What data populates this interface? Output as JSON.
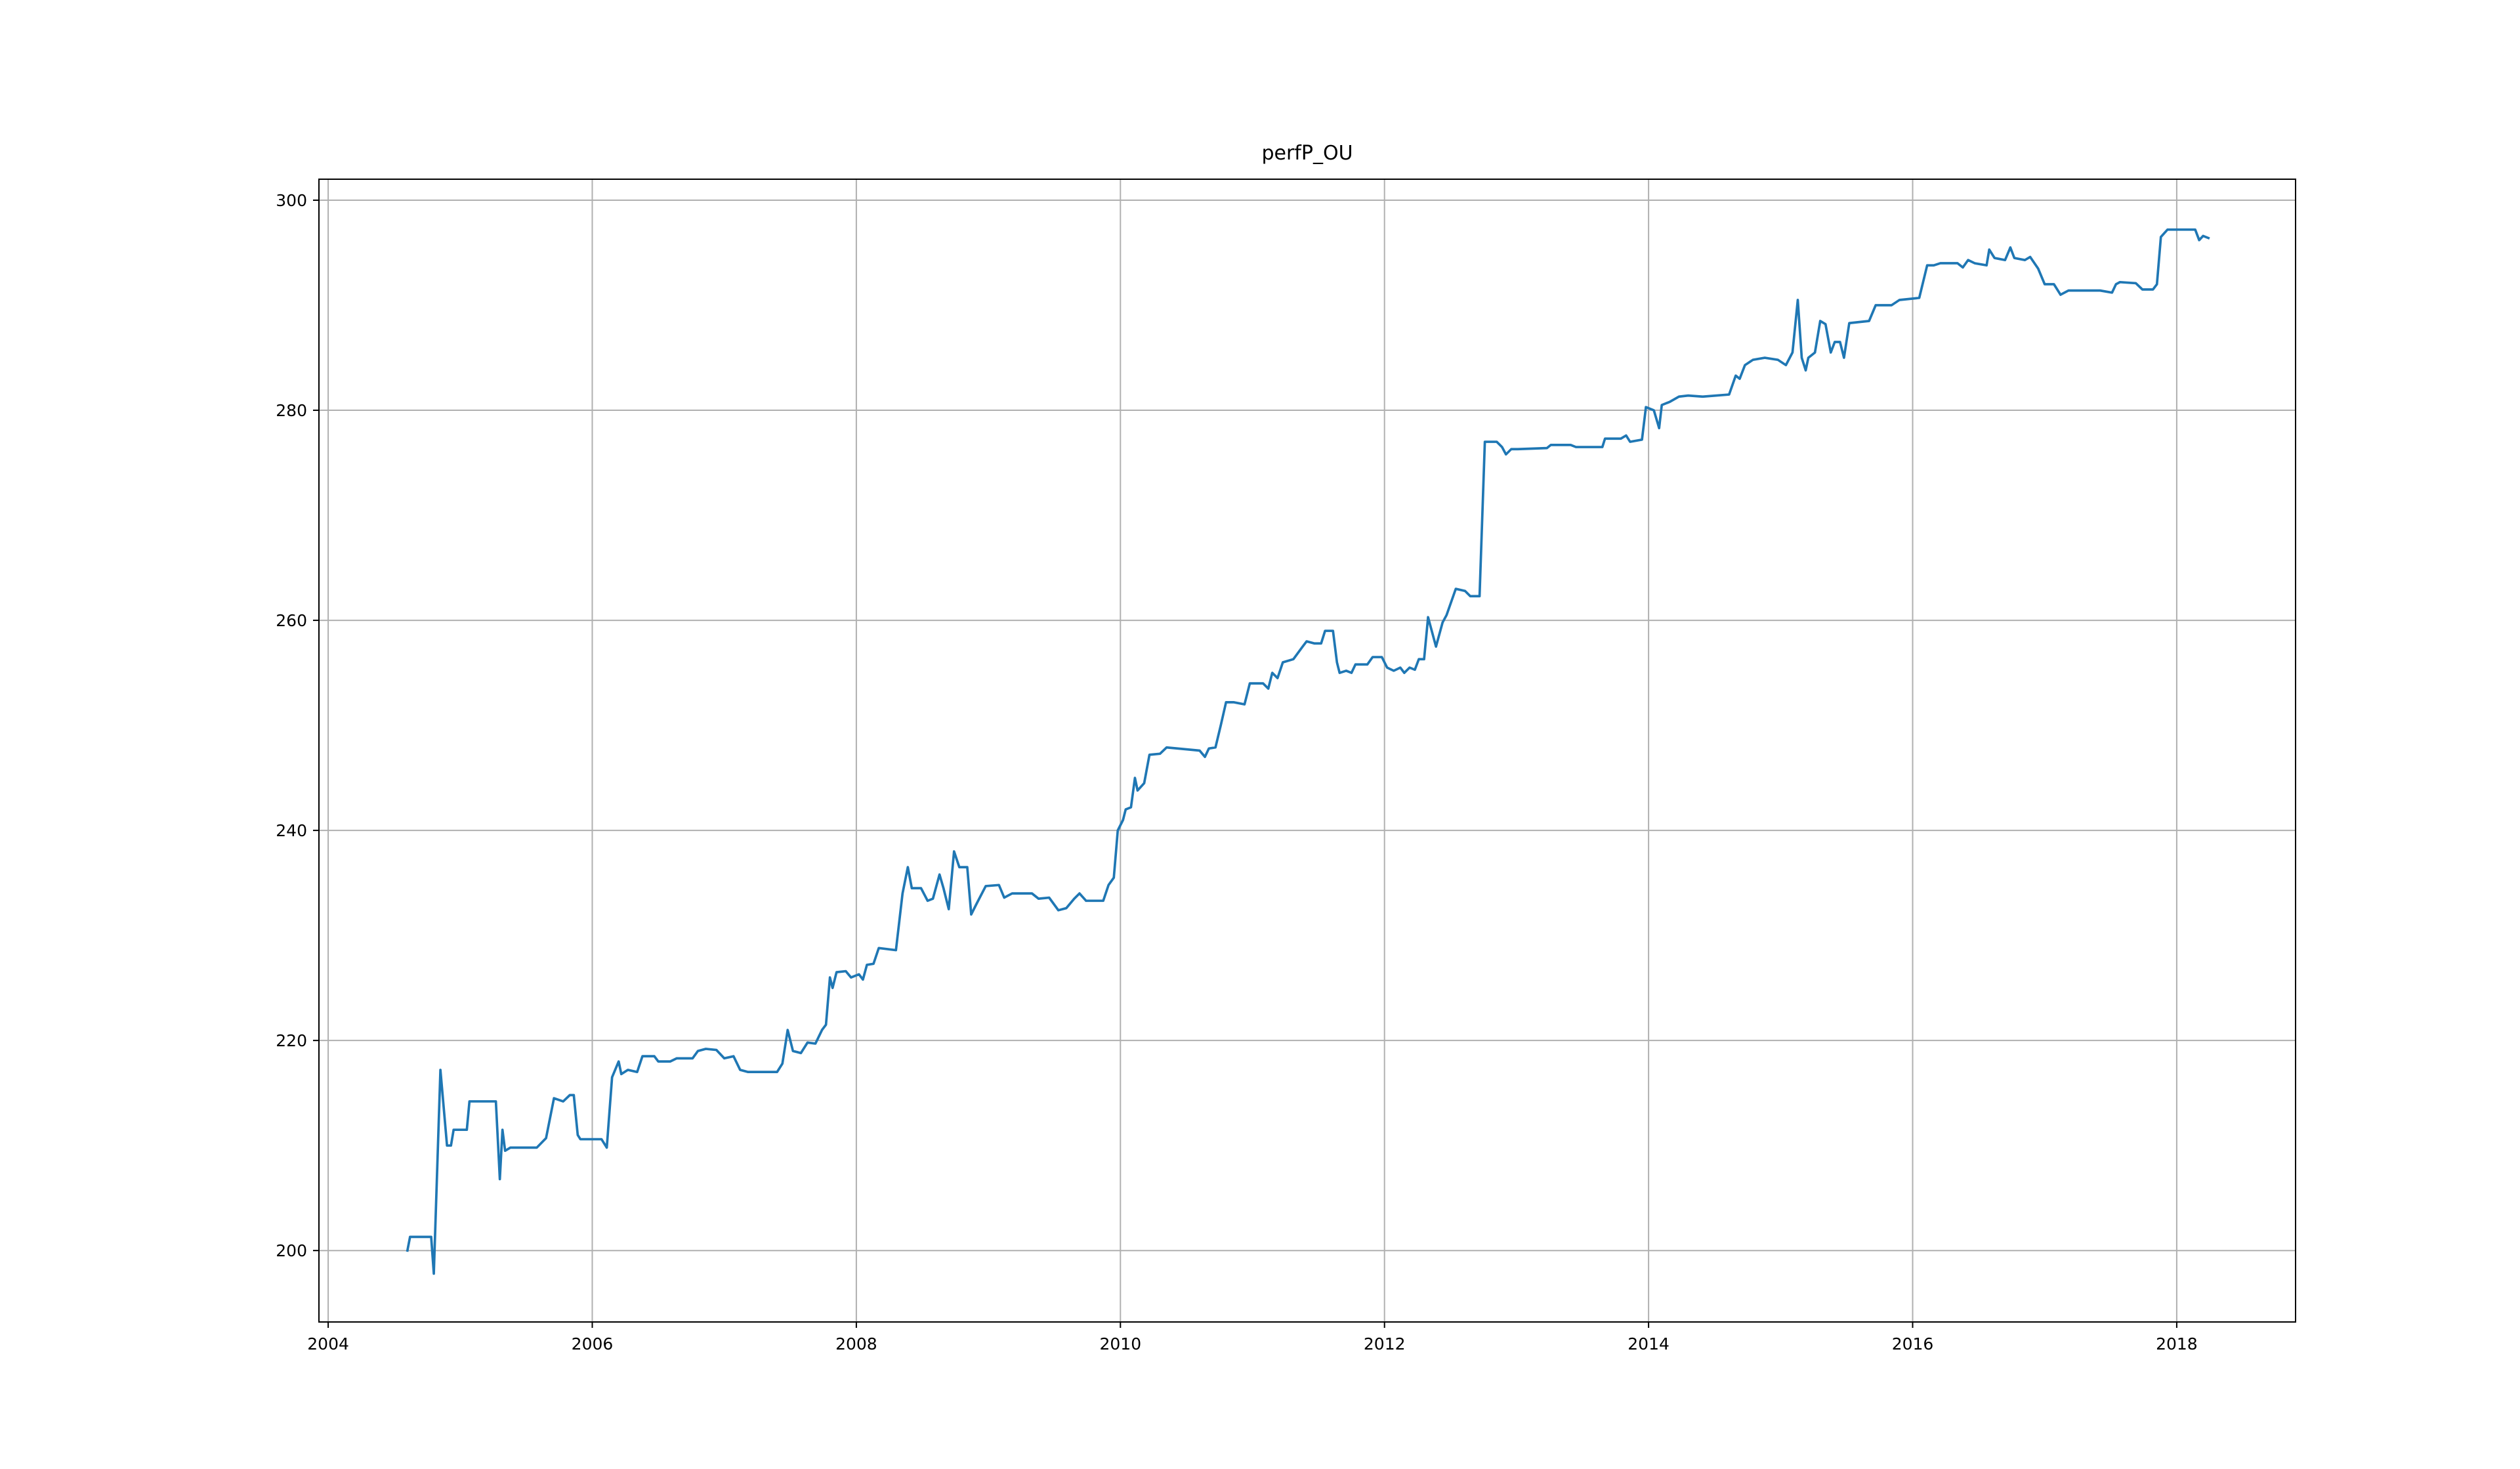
{
  "chart_data": {
    "type": "line",
    "title": "perfP_OU",
    "color": "#1f77b4",
    "grid": true,
    "xlim": [
      2003.93,
      2018.9
    ],
    "ylim": [
      193.2,
      302
    ],
    "xticks": [
      2004,
      2006,
      2008,
      2010,
      2012,
      2014,
      2016,
      2018
    ],
    "yticks": [
      200,
      220,
      240,
      260,
      280,
      300
    ],
    "x": [
      2004.6,
      2004.62,
      2004.78,
      2004.8,
      2004.85,
      2004.9,
      2004.93,
      2004.95,
      2005.05,
      2005.07,
      2005.27,
      2005.3,
      2005.32,
      2005.34,
      2005.38,
      2005.58,
      2005.65,
      2005.71,
      2005.78,
      2005.83,
      2005.86,
      2005.89,
      2005.91,
      2006.07,
      2006.11,
      2006.15,
      2006.2,
      2006.22,
      2006.27,
      2006.34,
      2006.38,
      2006.47,
      2006.5,
      2006.59,
      2006.64,
      2006.76,
      2006.8,
      2006.86,
      2006.94,
      2007.0,
      2007.07,
      2007.12,
      2007.18,
      2007.4,
      2007.44,
      2007.48,
      2007.52,
      2007.58,
      2007.63,
      2007.69,
      2007.74,
      2007.77,
      2007.8,
      2007.82,
      2007.85,
      2007.92,
      2007.96,
      2008.02,
      2008.05,
      2008.08,
      2008.13,
      2008.17,
      2008.3,
      2008.35,
      2008.39,
      2008.42,
      2008.49,
      2008.54,
      2008.58,
      2008.63,
      2008.66,
      2008.7,
      2008.74,
      2008.78,
      2008.84,
      2008.87,
      2008.91,
      2008.98,
      2009.08,
      2009.12,
      2009.18,
      2009.33,
      2009.38,
      2009.46,
      2009.53,
      2009.59,
      2009.65,
      2009.69,
      2009.74,
      2009.87,
      2009.91,
      2009.95,
      2009.98,
      2010.02,
      2010.04,
      2010.08,
      2010.11,
      2010.13,
      2010.18,
      2010.22,
      2010.3,
      2010.35,
      2010.6,
      2010.64,
      2010.67,
      2010.72,
      2010.76,
      2010.8,
      2010.86,
      2010.94,
      2010.98,
      2011.08,
      2011.12,
      2011.15,
      2011.19,
      2011.23,
      2011.31,
      2011.38,
      2011.41,
      2011.47,
      2011.52,
      2011.55,
      2011.61,
      2011.64,
      2011.66,
      2011.71,
      2011.75,
      2011.78,
      2011.87,
      2011.91,
      2011.98,
      2012.02,
      2012.07,
      2012.12,
      2012.15,
      2012.19,
      2012.23,
      2012.26,
      2012.3,
      2012.33,
      2012.39,
      2012.44,
      2012.47,
      2012.54,
      2012.61,
      2012.65,
      2012.72,
      2012.76,
      2012.85,
      2012.89,
      2012.92,
      2012.96,
      2013.01,
      2013.23,
      2013.26,
      2013.41,
      2013.45,
      2013.65,
      2013.67,
      2013.79,
      2013.83,
      2013.86,
      2013.95,
      2013.98,
      2014.04,
      2014.08,
      2014.1,
      2014.16,
      2014.23,
      2014.3,
      2014.41,
      2014.61,
      2014.66,
      2014.69,
      2014.73,
      2014.79,
      2014.88,
      2014.98,
      2015.04,
      2015.09,
      2015.13,
      2015.16,
      2015.19,
      2015.21,
      2015.26,
      2015.3,
      2015.34,
      2015.38,
      2015.41,
      2015.45,
      2015.48,
      2015.52,
      2015.67,
      2015.72,
      2015.84,
      2015.9,
      2016.05,
      2016.11,
      2016.16,
      2016.21,
      2016.34,
      2016.38,
      2016.42,
      2016.47,
      2016.56,
      2016.58,
      2016.62,
      2016.7,
      2016.74,
      2016.77,
      2016.85,
      2016.89,
      2016.95,
      2017.0,
      2017.07,
      2017.12,
      2017.18,
      2017.42,
      2017.51,
      2017.54,
      2017.57,
      2017.69,
      2017.74,
      2017.82,
      2017.85,
      2017.88,
      2017.93,
      2018.14,
      2018.17,
      2018.2,
      2018.24
    ],
    "values": [
      200.0,
      201.3,
      201.3,
      197.8,
      217.2,
      210,
      210,
      211.5,
      211.5,
      214.2,
      214.2,
      206.8,
      211.5,
      209.5,
      209.8,
      209.8,
      210.7,
      214.5,
      214.2,
      214.8,
      214.8,
      211,
      210.6,
      210.6,
      209.8,
      216.5,
      218,
      216.8,
      217.2,
      217,
      218.5,
      218.5,
      218,
      218,
      218.3,
      218.3,
      219,
      219.2,
      219.1,
      218.3,
      218.5,
      217.2,
      217,
      217,
      217.8,
      221,
      219,
      218.8,
      219.8,
      219.7,
      221,
      221.5,
      226,
      225,
      226.5,
      226.6,
      226,
      226.3,
      225.8,
      227.2,
      227.3,
      228.8,
      228.6,
      234,
      236.5,
      234.5,
      234.5,
      233.3,
      233.5,
      235.8,
      234.5,
      232.5,
      238,
      236.5,
      236.5,
      232,
      233,
      234.7,
      234.8,
      233.6,
      234,
      234,
      233.5,
      233.6,
      232.4,
      232.6,
      233.5,
      234,
      233.3,
      233.3,
      234.8,
      235.5,
      240,
      241,
      242,
      242.2,
      245,
      243.8,
      244.5,
      247.2,
      247.3,
      247.9,
      247.6,
      247,
      247.8,
      247.9,
      250,
      252.2,
      252.2,
      252,
      254,
      254,
      253.5,
      255,
      254.5,
      256,
      256.3,
      257.5,
      258,
      257.8,
      257.8,
      259,
      259,
      256,
      255,
      255.2,
      255,
      255.8,
      255.8,
      256.5,
      256.5,
      255.5,
      255.2,
      255.5,
      255,
      255.5,
      255.3,
      256.3,
      256.3,
      260.3,
      257.5,
      259.8,
      260.5,
      263,
      262.8,
      262.3,
      262.3,
      277,
      277,
      276.5,
      275.8,
      276.3,
      276.3,
      276.4,
      276.7,
      276.7,
      276.5,
      276.5,
      277.3,
      277.3,
      277.6,
      277,
      277.2,
      280.3,
      280,
      278.3,
      280.5,
      280.8,
      281.3,
      281.4,
      281.3,
      281.5,
      283.3,
      283,
      284.3,
      284.8,
      285,
      284.8,
      284.3,
      285.5,
      290.5,
      285,
      283.8,
      285,
      285.5,
      288.5,
      288.2,
      285.5,
      286.5,
      286.5,
      285,
      288.3,
      288.5,
      290,
      290,
      290.5,
      290.7,
      293.8,
      293.8,
      294,
      294,
      293.6,
      294.3,
      294,
      293.8,
      295.3,
      294.5,
      294.3,
      295.5,
      294.5,
      294.3,
      294.6,
      293.5,
      292,
      292,
      291,
      291.4,
      291.4,
      291.2,
      292,
      292.2,
      292.1,
      291.5,
      291.5,
      292,
      296.5,
      297.2,
      297.2,
      296.2,
      296.6,
      296.4
    ]
  }
}
